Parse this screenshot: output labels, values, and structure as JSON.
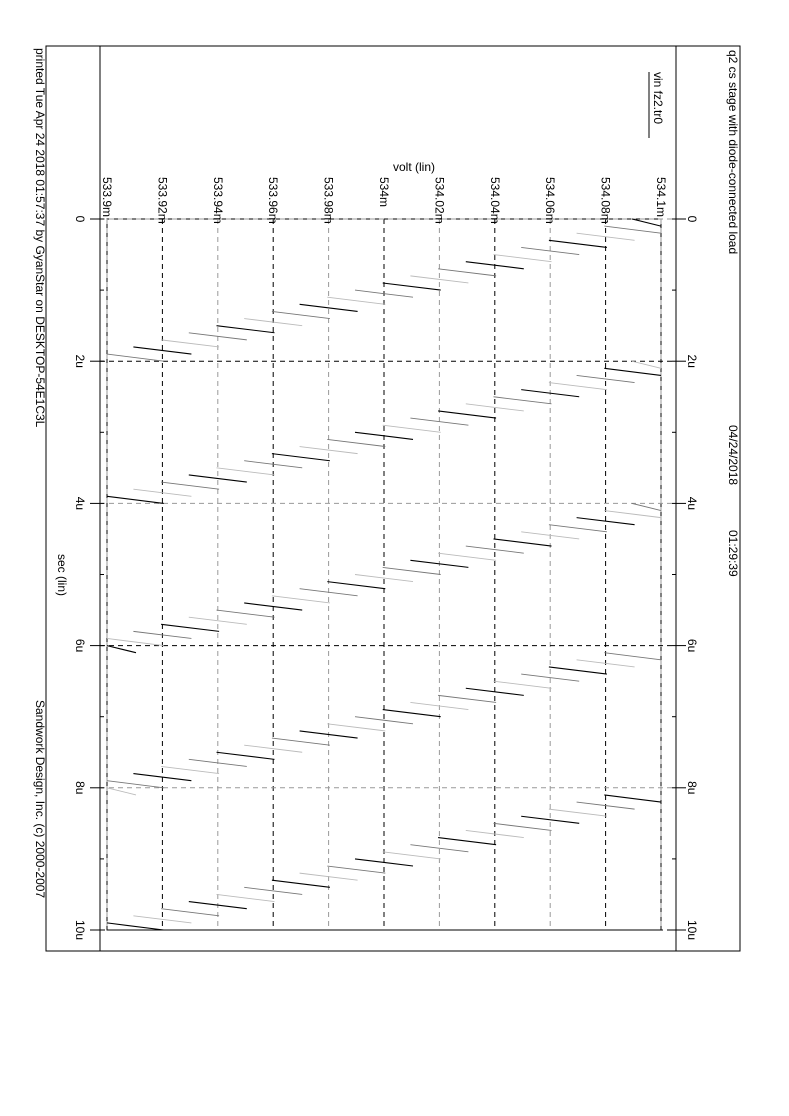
{
  "header": {
    "title": "q2 cs stage with diode-connected load",
    "date": "04/24/2018",
    "time": "01:29:39",
    "legend_entry": "vin fz2.tr0"
  },
  "footer": {
    "printed": "printed Tue Apr 24 2018 01:57:37 by GyanStar on DESKTOP-54E1C3L",
    "copyright": "Sandwork Design, Inc. (c) 2000-2007"
  },
  "chart_data": {
    "type": "line",
    "title": "q2 cs stage with diode-connected load",
    "xlabel": "sec (lin)",
    "ylabel": "volt (lin)",
    "x_unit": "s",
    "y_unit": "V",
    "xlim": [
      0,
      10
    ],
    "ylim": [
      533.9,
      534.1
    ],
    "x_ticks": [
      {
        "v": 0,
        "label": "0"
      },
      {
        "v": 2,
        "label": "2u"
      },
      {
        "v": 4,
        "label": "4u"
      },
      {
        "v": 6,
        "label": "6u"
      },
      {
        "v": 8,
        "label": "8u"
      },
      {
        "v": 10,
        "label": "10u"
      }
    ],
    "y_ticks": [
      {
        "v": 533.9,
        "label": "533.9m"
      },
      {
        "v": 533.92,
        "label": "533.92m"
      },
      {
        "v": 533.94,
        "label": "533.94m"
      },
      {
        "v": 533.96,
        "label": "533.96m"
      },
      {
        "v": 533.98,
        "label": "533.98m"
      },
      {
        "v": 534.0,
        "label": "534m"
      },
      {
        "v": 534.02,
        "label": "534.02m"
      },
      {
        "v": 534.04,
        "label": "534.04m"
      },
      {
        "v": 534.06,
        "label": "534.06m"
      },
      {
        "v": 534.08,
        "label": "534.08m"
      },
      {
        "v": 534.1,
        "label": "534.1m"
      }
    ],
    "grid": true,
    "legend_position": "top",
    "series": [
      {
        "name": "vin fz2.tr0",
        "color": "#000000",
        "repeat_period": 2,
        "staircase_period": 0.1
      }
    ]
  }
}
